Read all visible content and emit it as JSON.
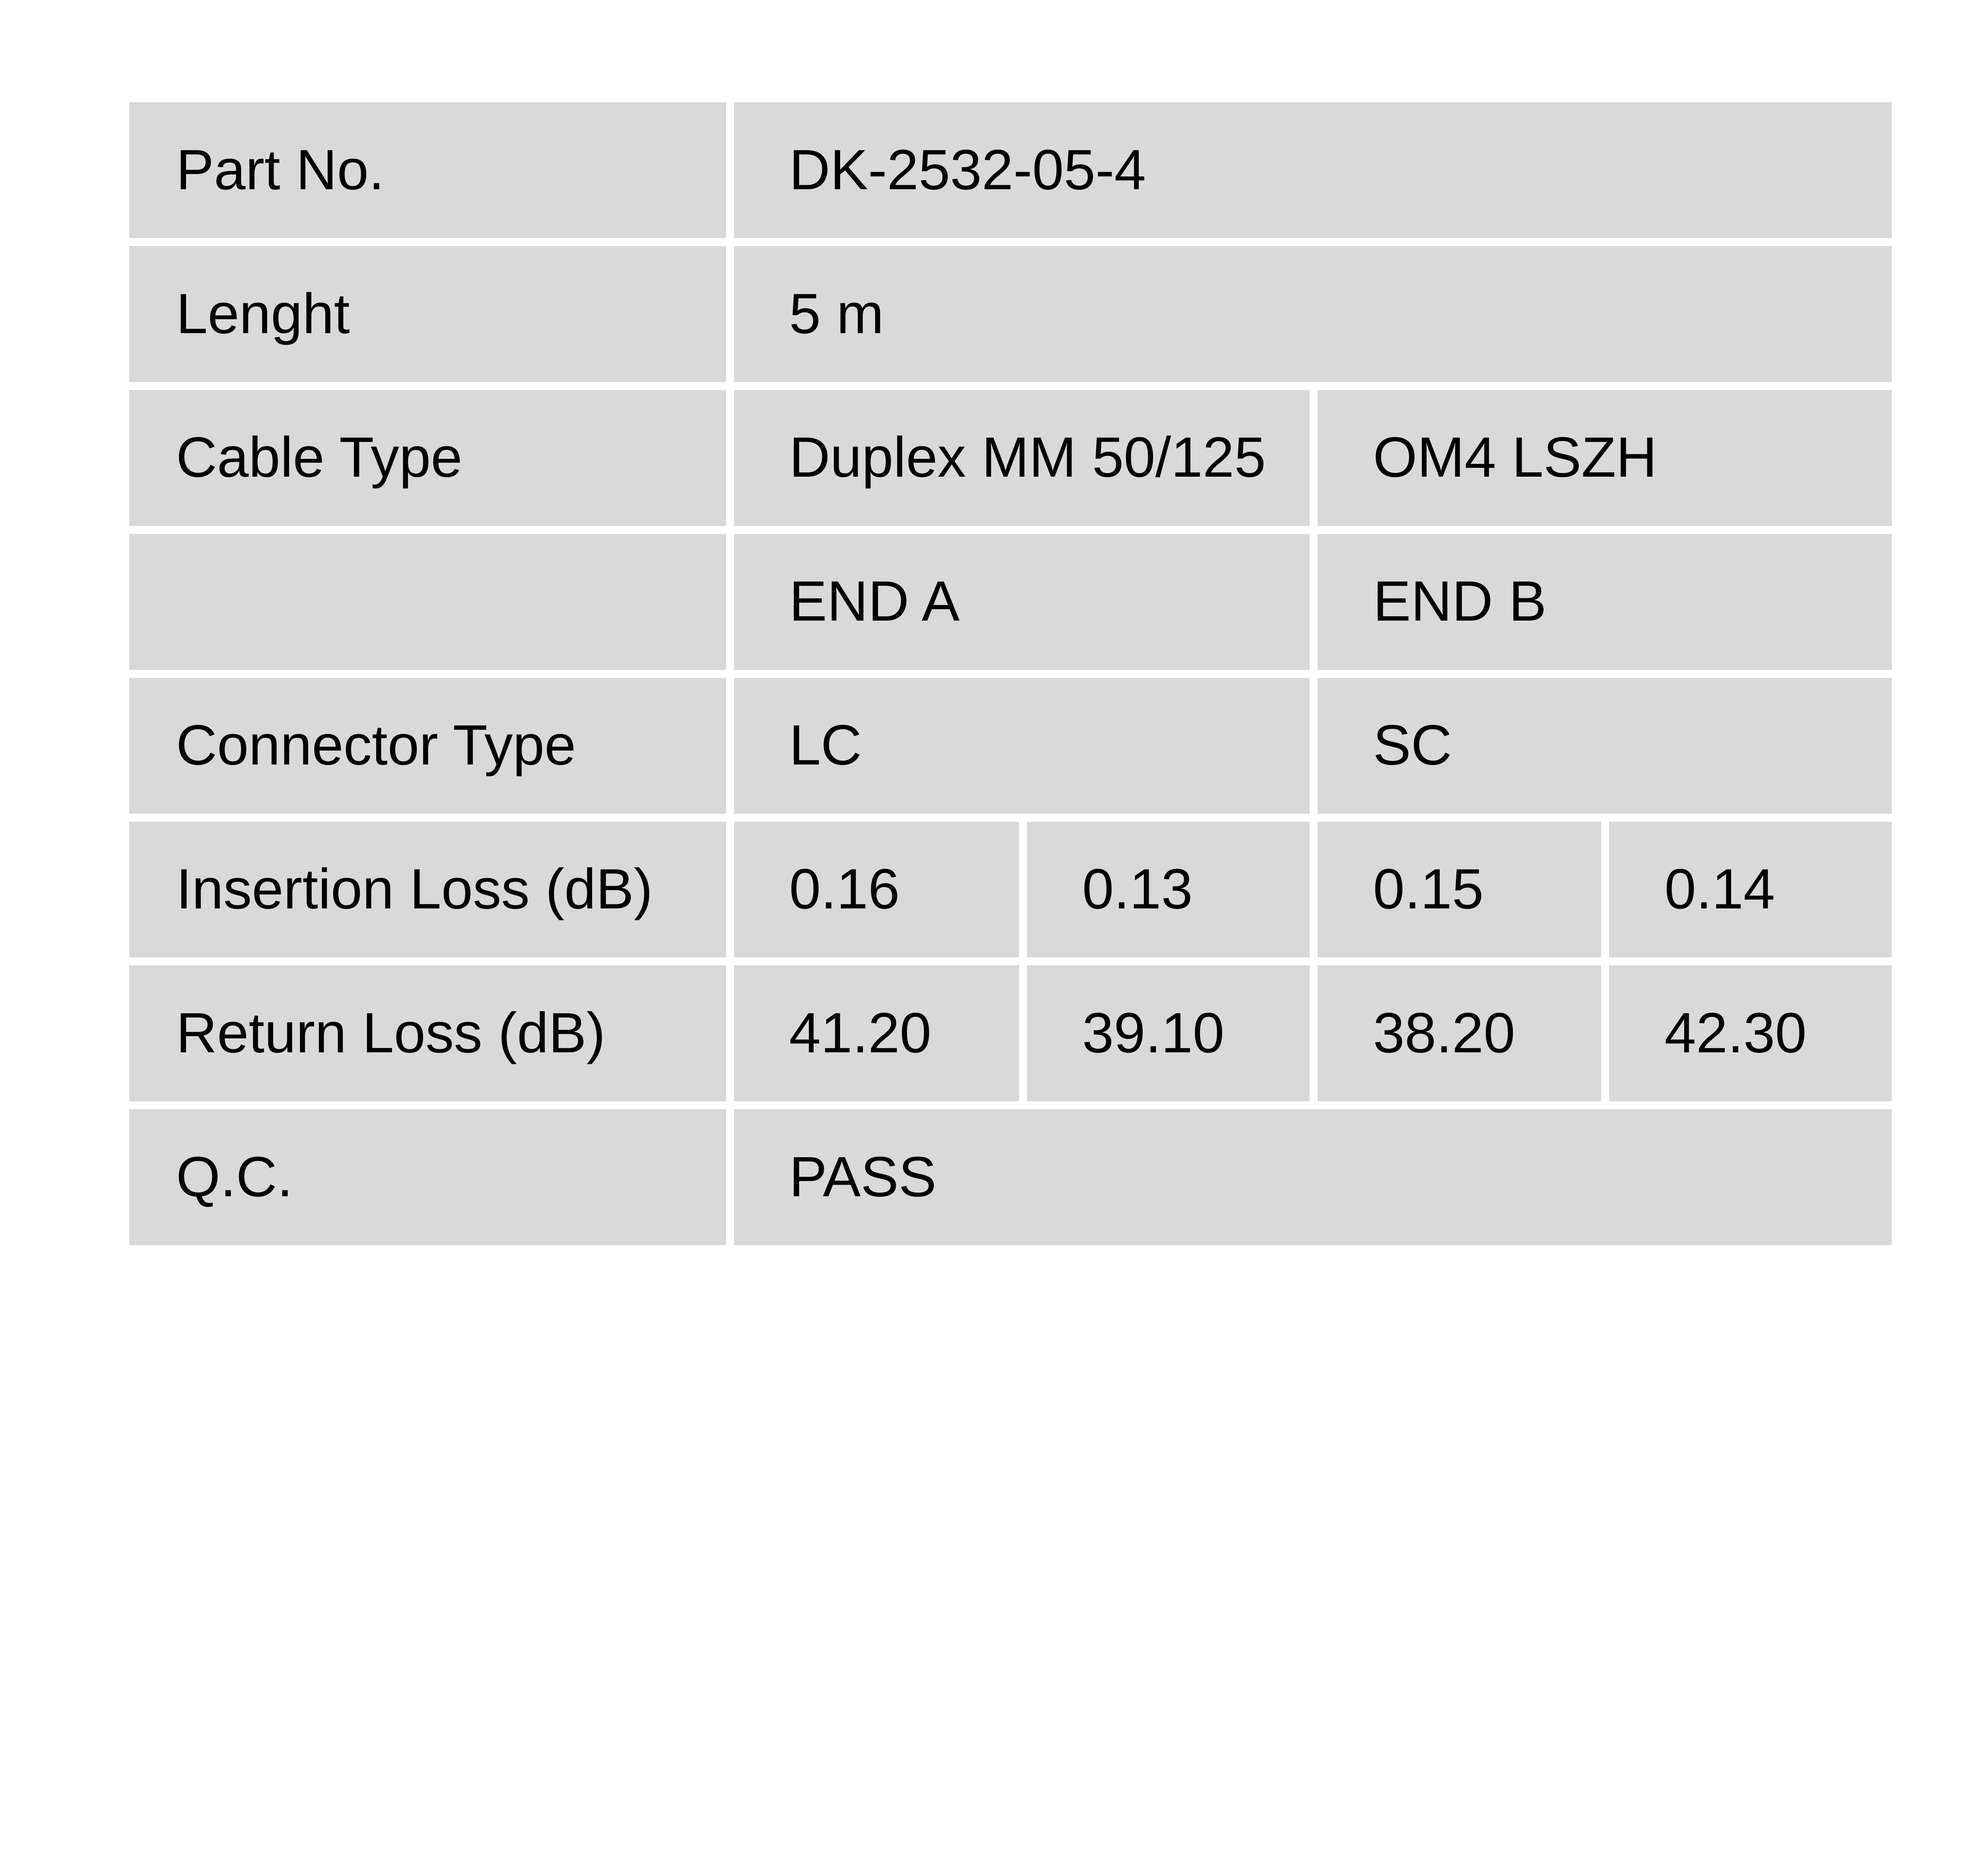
{
  "colors": {
    "cell_background": "#d9d9d9",
    "page_background": "#ffffff",
    "text": "#000000"
  },
  "table": {
    "rows": [
      {
        "label": "Part No.",
        "value": "DK-2532-05-4"
      },
      {
        "label": "Lenght",
        "value": "5 m"
      },
      {
        "label": "Cable Type",
        "value_a": "Duplex MM 50/125",
        "value_b": "OM4 LSZH"
      },
      {
        "label": "",
        "value_a": "END A",
        "value_b": "END B"
      },
      {
        "label": "Connector Type",
        "value_a": "LC",
        "value_b": "SC"
      },
      {
        "label": "Insertion Loss (dB)",
        "values": [
          "0.16",
          "0.13",
          "0.15",
          "0.14"
        ]
      },
      {
        "label": "Return Loss (dB)",
        "values": [
          "41.20",
          "39.10",
          "38.20",
          "42.30"
        ]
      },
      {
        "label": "Q.C.",
        "value": "PASS"
      }
    ]
  }
}
